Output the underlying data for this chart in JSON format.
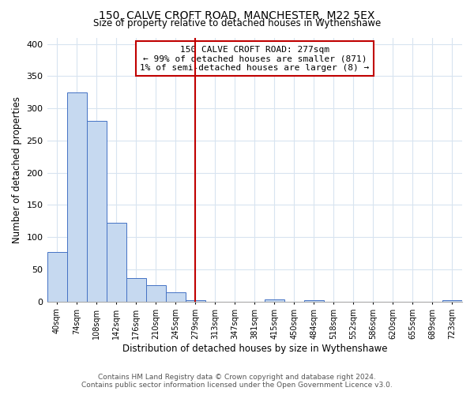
{
  "title": "150, CALVE CROFT ROAD, MANCHESTER, M22 5EX",
  "subtitle": "Size of property relative to detached houses in Wythenshawe",
  "xlabel": "Distribution of detached houses by size in Wythenshawe",
  "ylabel": "Number of detached properties",
  "bin_labels": [
    "40sqm",
    "74sqm",
    "108sqm",
    "142sqm",
    "176sqm",
    "210sqm",
    "245sqm",
    "279sqm",
    "313sqm",
    "347sqm",
    "381sqm",
    "415sqm",
    "450sqm",
    "484sqm",
    "518sqm",
    "552sqm",
    "586sqm",
    "620sqm",
    "655sqm",
    "689sqm",
    "723sqm"
  ],
  "bar_heights": [
    77,
    325,
    280,
    122,
    37,
    25,
    15,
    2,
    0,
    0,
    0,
    3,
    0,
    2,
    0,
    0,
    0,
    0,
    0,
    0,
    2
  ],
  "bar_color": "#c6d9f0",
  "bar_edge_color": "#4472c4",
  "vline_x_index": 7,
  "vline_color": "#c00000",
  "annotation_title": "150 CALVE CROFT ROAD: 277sqm",
  "annotation_line1": "← 99% of detached houses are smaller (871)",
  "annotation_line2": "1% of semi-detached houses are larger (8) →",
  "annotation_box_color": "#ffffff",
  "annotation_box_edge": "#c00000",
  "ylim": [
    0,
    410
  ],
  "yticks": [
    0,
    50,
    100,
    150,
    200,
    250,
    300,
    350,
    400
  ],
  "footnote1": "Contains HM Land Registry data © Crown copyright and database right 2024.",
  "footnote2": "Contains public sector information licensed under the Open Government Licence v3.0.",
  "bg_color": "#ffffff",
  "grid_color": "#d8e4f0"
}
